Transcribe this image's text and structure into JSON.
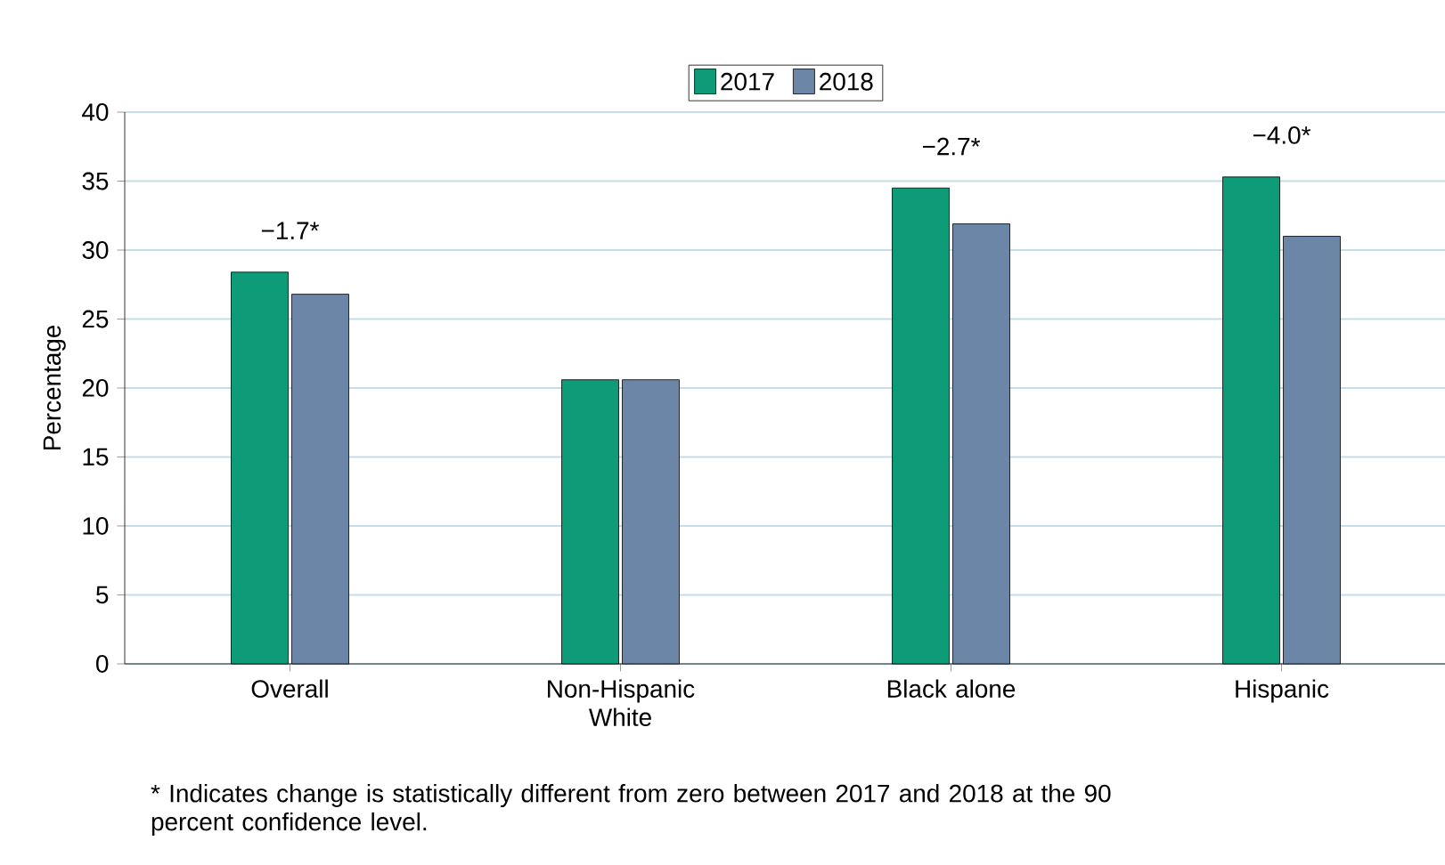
{
  "chart_data": {
    "type": "bar",
    "ylabel": "Percentage",
    "categories": [
      "Overall",
      "Non-Hispanic White",
      "Black alone",
      "Hispanic"
    ],
    "series": [
      {
        "name": "2017",
        "color": "#0e9b78",
        "values": [
          28.4,
          20.6,
          34.5,
          35.3
        ]
      },
      {
        "name": "2018",
        "color": "#6b86a6",
        "values": [
          26.8,
          20.6,
          31.9,
          31.0
        ]
      }
    ],
    "ylim": [
      0,
      40
    ],
    "yticks": [
      0,
      5,
      10,
      15,
      20,
      25,
      30,
      35,
      40
    ],
    "grid": "y",
    "legend": "top",
    "annotations": [
      "−1.7*",
      "−2.7*",
      "−4.0*",
      "* Indicates change is statistically different from zero between 2017 and 2018 at the 90 percent confidence level."
    ]
  }
}
